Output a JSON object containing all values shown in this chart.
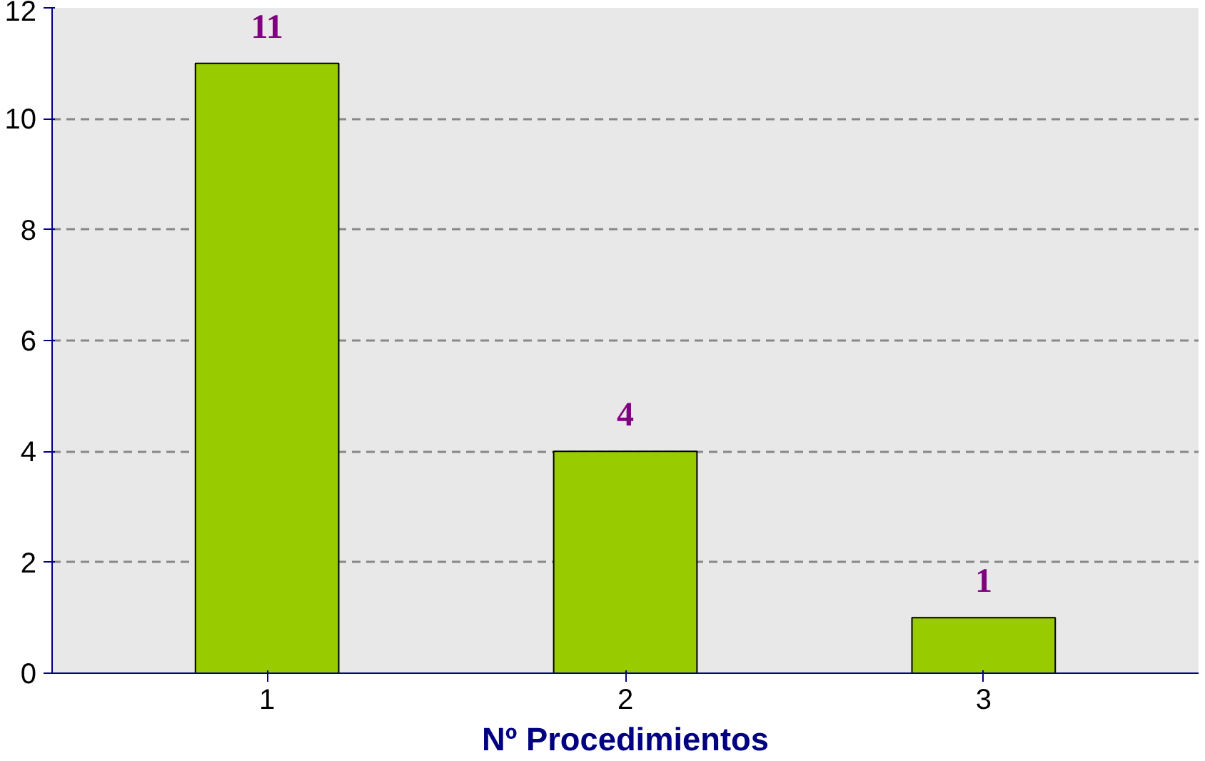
{
  "chart_data": {
    "type": "bar",
    "xlabel": "Nº Procedimientos",
    "categories": [
      "1",
      "2",
      "3"
    ],
    "values": [
      11,
      4,
      1
    ],
    "color": "#99cc00",
    "ylim": [
      0,
      12
    ],
    "yticks": [
      0,
      2,
      4,
      6,
      8,
      10,
      12
    ],
    "grid": "y",
    "data_labels": true
  }
}
